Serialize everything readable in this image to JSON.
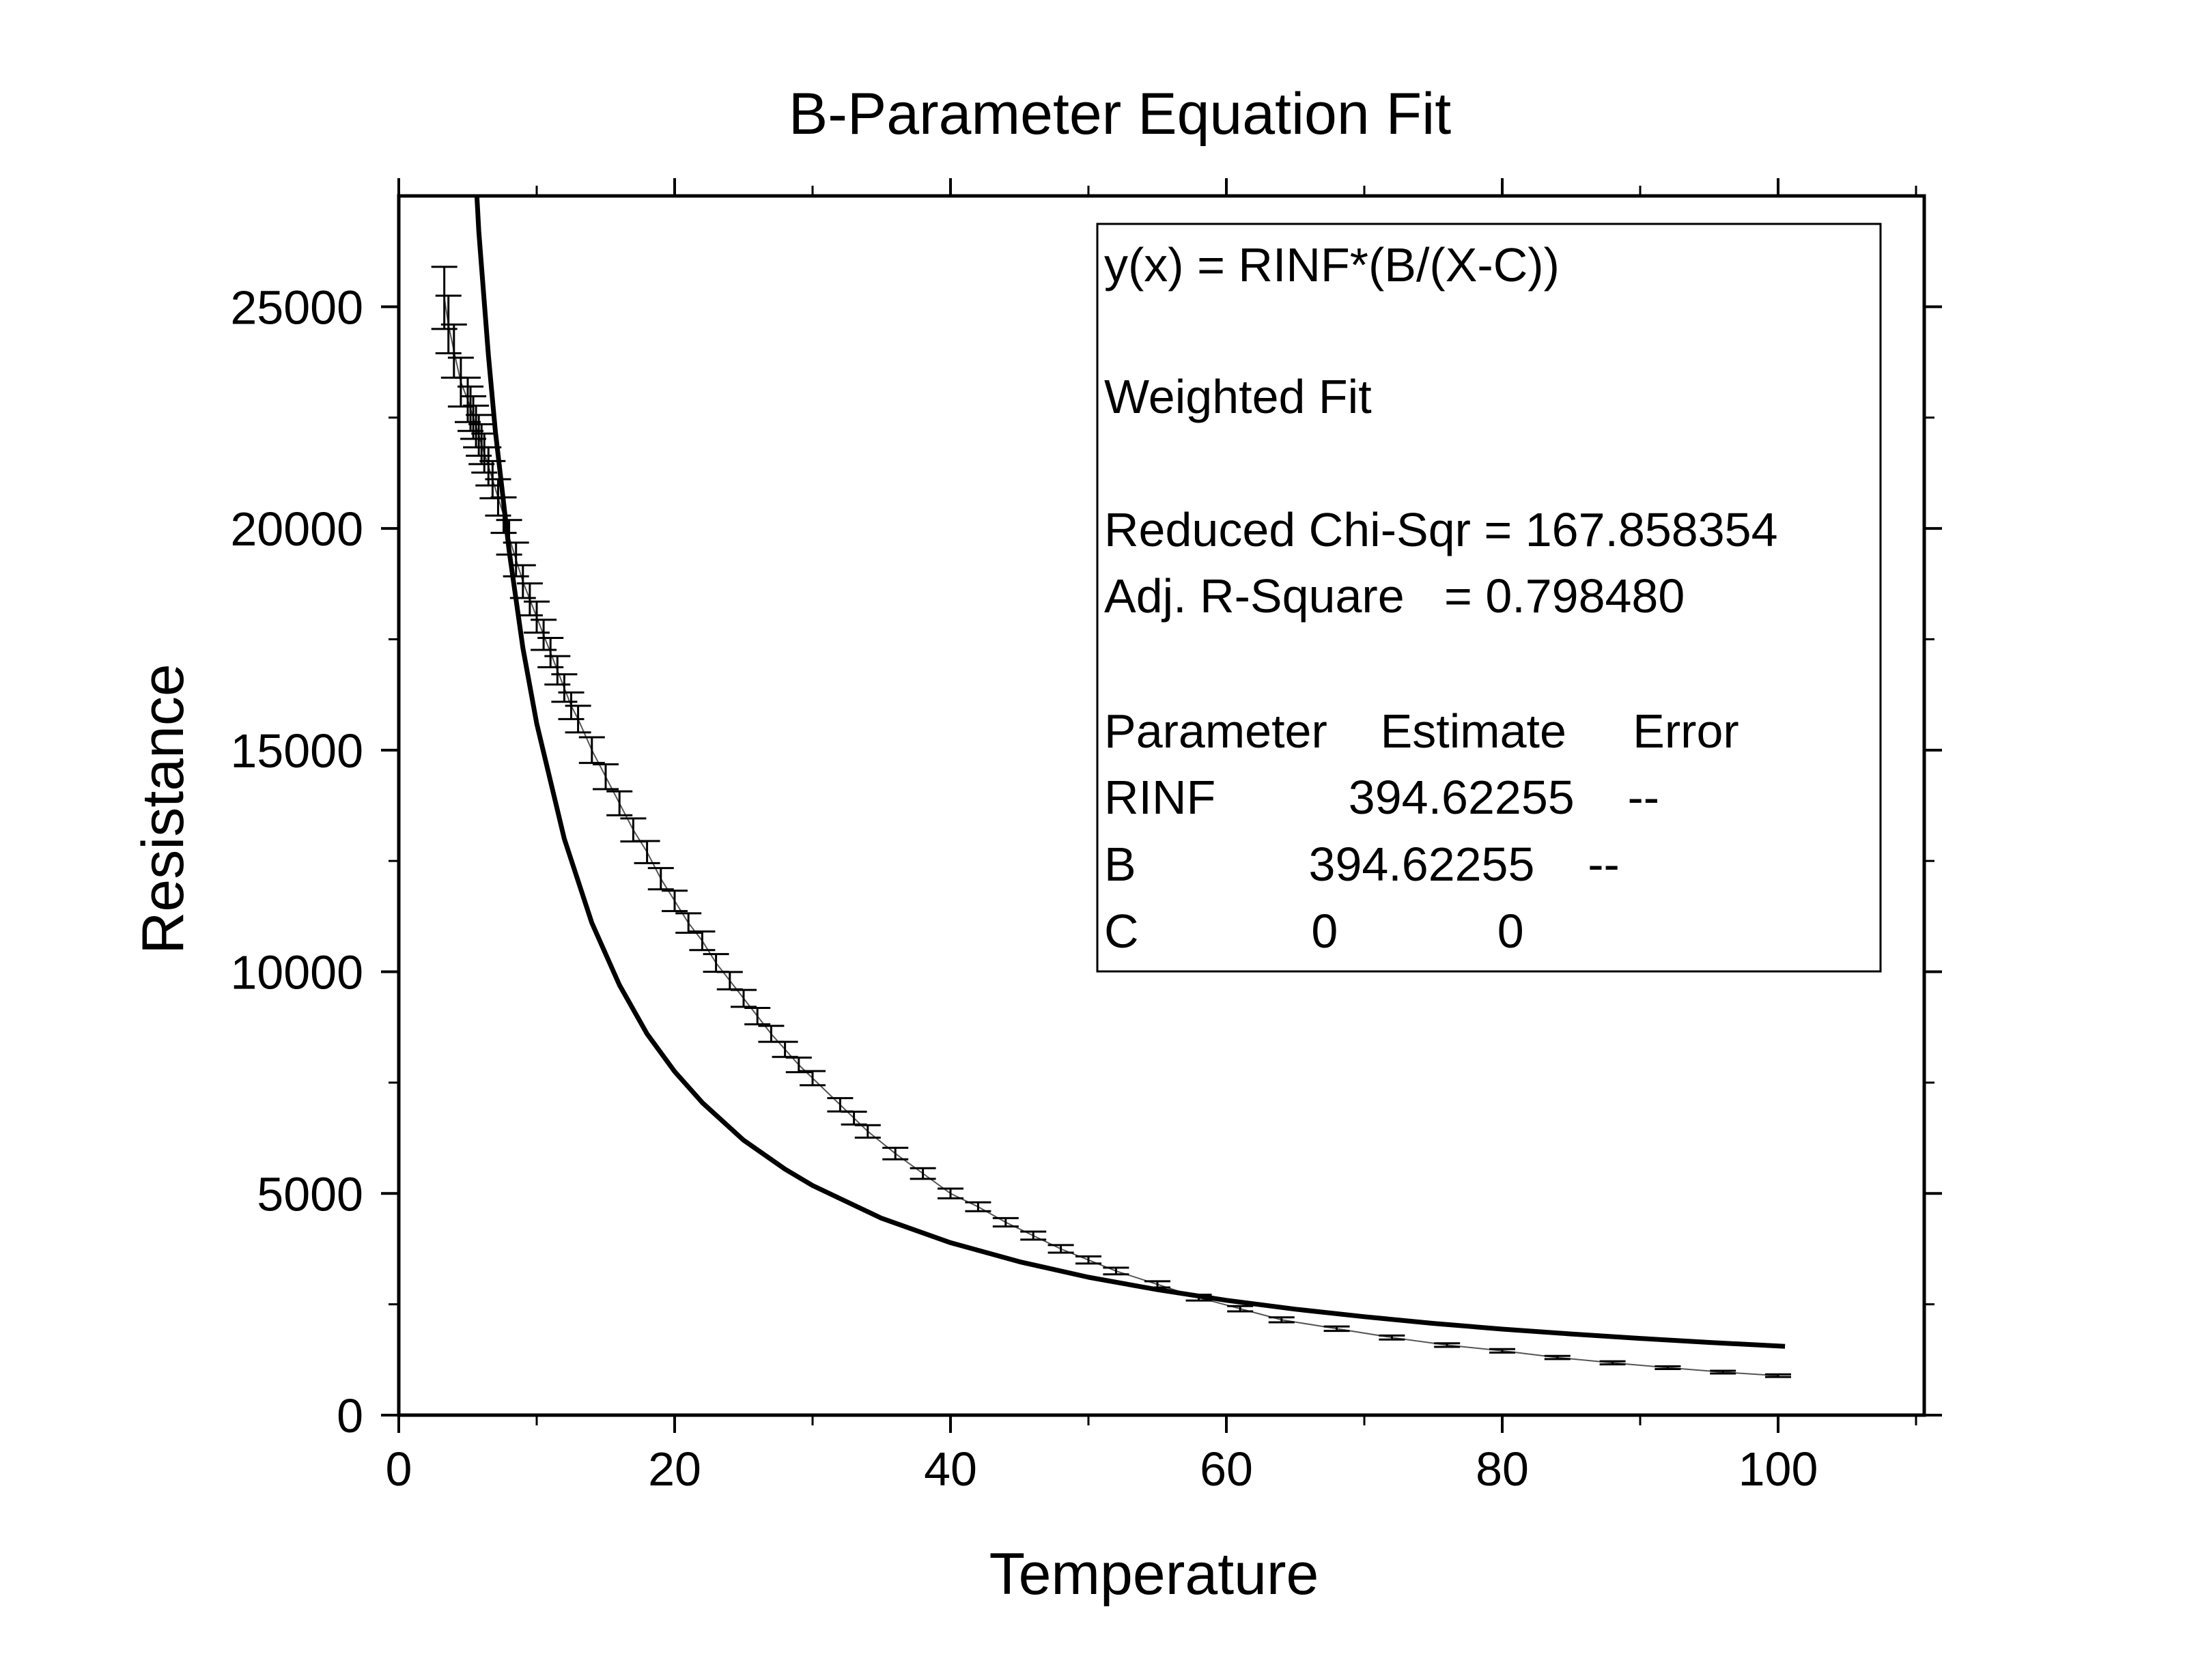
{
  "chart_data": {
    "type": "scatter",
    "title": "B-Parameter Equation Fit",
    "xlabel": "Temperature",
    "ylabel": "Resistance",
    "xlim": [
      0,
      110
    ],
    "ylim": [
      0,
      27500
    ],
    "x_ticks": [
      0,
      20,
      40,
      60,
      80,
      100
    ],
    "x_tick_labels": [
      "0",
      "20",
      "40",
      "60",
      "80",
      "100"
    ],
    "y_ticks": [
      0,
      5000,
      10000,
      15000,
      20000,
      25000
    ],
    "y_tick_labels": [
      "0",
      "5000",
      "10000",
      "15000",
      "20000",
      "25000"
    ],
    "grid": false,
    "series": [
      {
        "style": "points with error bars, thin connecting line",
        "x": [
          3.3,
          3.6,
          4.0,
          4.5,
          5.0,
          5.2,
          5.4,
          5.6,
          5.8,
          6.0,
          6.2,
          6.5,
          6.8,
          7.2,
          7.6,
          8.0,
          8.5,
          9.0,
          9.5,
          10.0,
          10.5,
          11.0,
          11.5,
          12.0,
          12.5,
          13.0,
          14.0,
          15.0,
          16.0,
          17.0,
          18.0,
          19.0,
          20.0,
          21.0,
          22.0,
          23.0,
          24.0,
          25.0,
          26.0,
          27.0,
          28.0,
          29.0,
          30.0,
          32.0,
          33.0,
          34.0,
          36.0,
          38.0,
          40.0,
          42.0,
          44.0,
          46.0,
          48.0,
          50.0,
          52.0,
          55.0,
          58.0,
          61.0,
          64.0,
          68.0,
          72.0,
          76.0,
          80.0,
          84.0,
          88.0,
          92.0,
          96.0,
          100.0
        ],
        "y": [
          25200,
          24600,
          24000,
          23300,
          22900,
          22700,
          22500,
          22300,
          22100,
          21900,
          21700,
          21400,
          21100,
          20700,
          20300,
          19800,
          19300,
          18800,
          18400,
          18000,
          17600,
          17200,
          16800,
          16400,
          16000,
          15700,
          15000,
          14400,
          13800,
          13200,
          12700,
          12100,
          11600,
          11100,
          10700,
          10200,
          9800,
          9400,
          9000,
          8600,
          8250,
          7900,
          7600,
          7000,
          6700,
          6400,
          5900,
          5450,
          5000,
          4700,
          4350,
          4050,
          3750,
          3500,
          3250,
          2950,
          2650,
          2400,
          2150,
          1950,
          1750,
          1580,
          1450,
          1300,
          1180,
          1070,
          970,
          890
        ],
        "yerr": [
          700,
          650,
          600,
          550,
          500,
          500,
          480,
          470,
          460,
          450,
          440,
          430,
          420,
          410,
          400,
          390,
          380,
          370,
          360,
          350,
          340,
          330,
          320,
          310,
          300,
          300,
          290,
          280,
          270,
          260,
          250,
          240,
          230,
          220,
          210,
          200,
          195,
          190,
          185,
          180,
          170,
          165,
          160,
          150,
          145,
          140,
          130,
          120,
          110,
          100,
          95,
          90,
          85,
          80,
          75,
          70,
          65,
          60,
          55,
          50,
          45,
          40,
          40,
          35,
          35,
          30,
          30,
          30
        ]
      },
      {
        "style": "fit curve, thick solid line",
        "x": [
          5.8,
          6.0,
          6.5,
          7.0,
          8.0,
          9.0,
          10.0,
          12.0,
          14.0,
          16.0,
          18.0,
          20.0,
          22.0,
          25.0,
          28.0,
          30.0,
          35.0,
          40.0,
          45.0,
          50.0,
          55.0,
          60.0,
          65.0,
          70.0,
          75.0,
          80.0,
          85.0,
          90.0,
          95.0,
          100.5
        ],
        "y": [
          26700,
          25900,
          23900,
          22200,
          19500,
          17300,
          15600,
          13000,
          11100,
          9700,
          8600,
          7750,
          7050,
          6200,
          5550,
          5180,
          4440,
          3890,
          3460,
          3110,
          2830,
          2590,
          2390,
          2220,
          2070,
          1940,
          1830,
          1730,
          1640,
          1550
        ]
      }
    ],
    "annotations": [
      "y(x) = RINF*(B/(X-C))",
      "Weighted Fit",
      "Reduced Chi-Sqr = 167.858354",
      "Adj. R-Square   = 0.798480",
      "Parameter    Estimate     Error",
      "RINF          394.62255    --",
      "B             394.62255    --",
      "C             0            0"
    ]
  }
}
